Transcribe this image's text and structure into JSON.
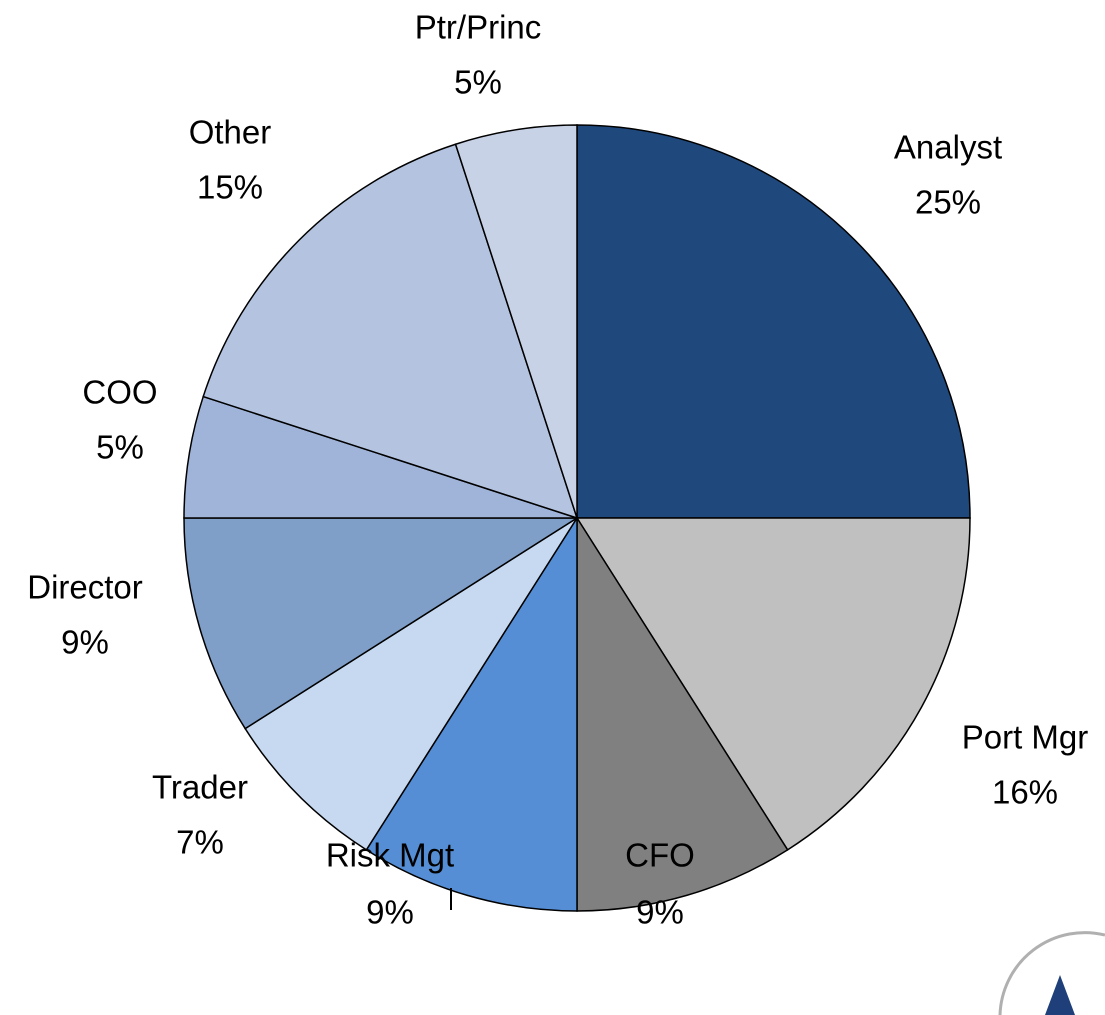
{
  "chart_data": {
    "type": "pie",
    "categories": [
      "Analyst",
      "Port Mgr",
      "CFO",
      "Risk Mgt",
      "Trader",
      "Director",
      "COO",
      "Other",
      "Ptr/Princ"
    ],
    "values": [
      25,
      16,
      9,
      9,
      7,
      9,
      5,
      15,
      5
    ],
    "value_labels": [
      "25%",
      "16%",
      "9%",
      "9%",
      "7%",
      "9%",
      "5%",
      "15%",
      "5%"
    ],
    "colors": [
      "#1f497d",
      "#c0c0c0",
      "#808080",
      "#558ed5",
      "#c6d9f1",
      "#7f9ec8",
      "#9fb4d8",
      "#b4c4e0",
      "#c8d2e6"
    ]
  }
}
